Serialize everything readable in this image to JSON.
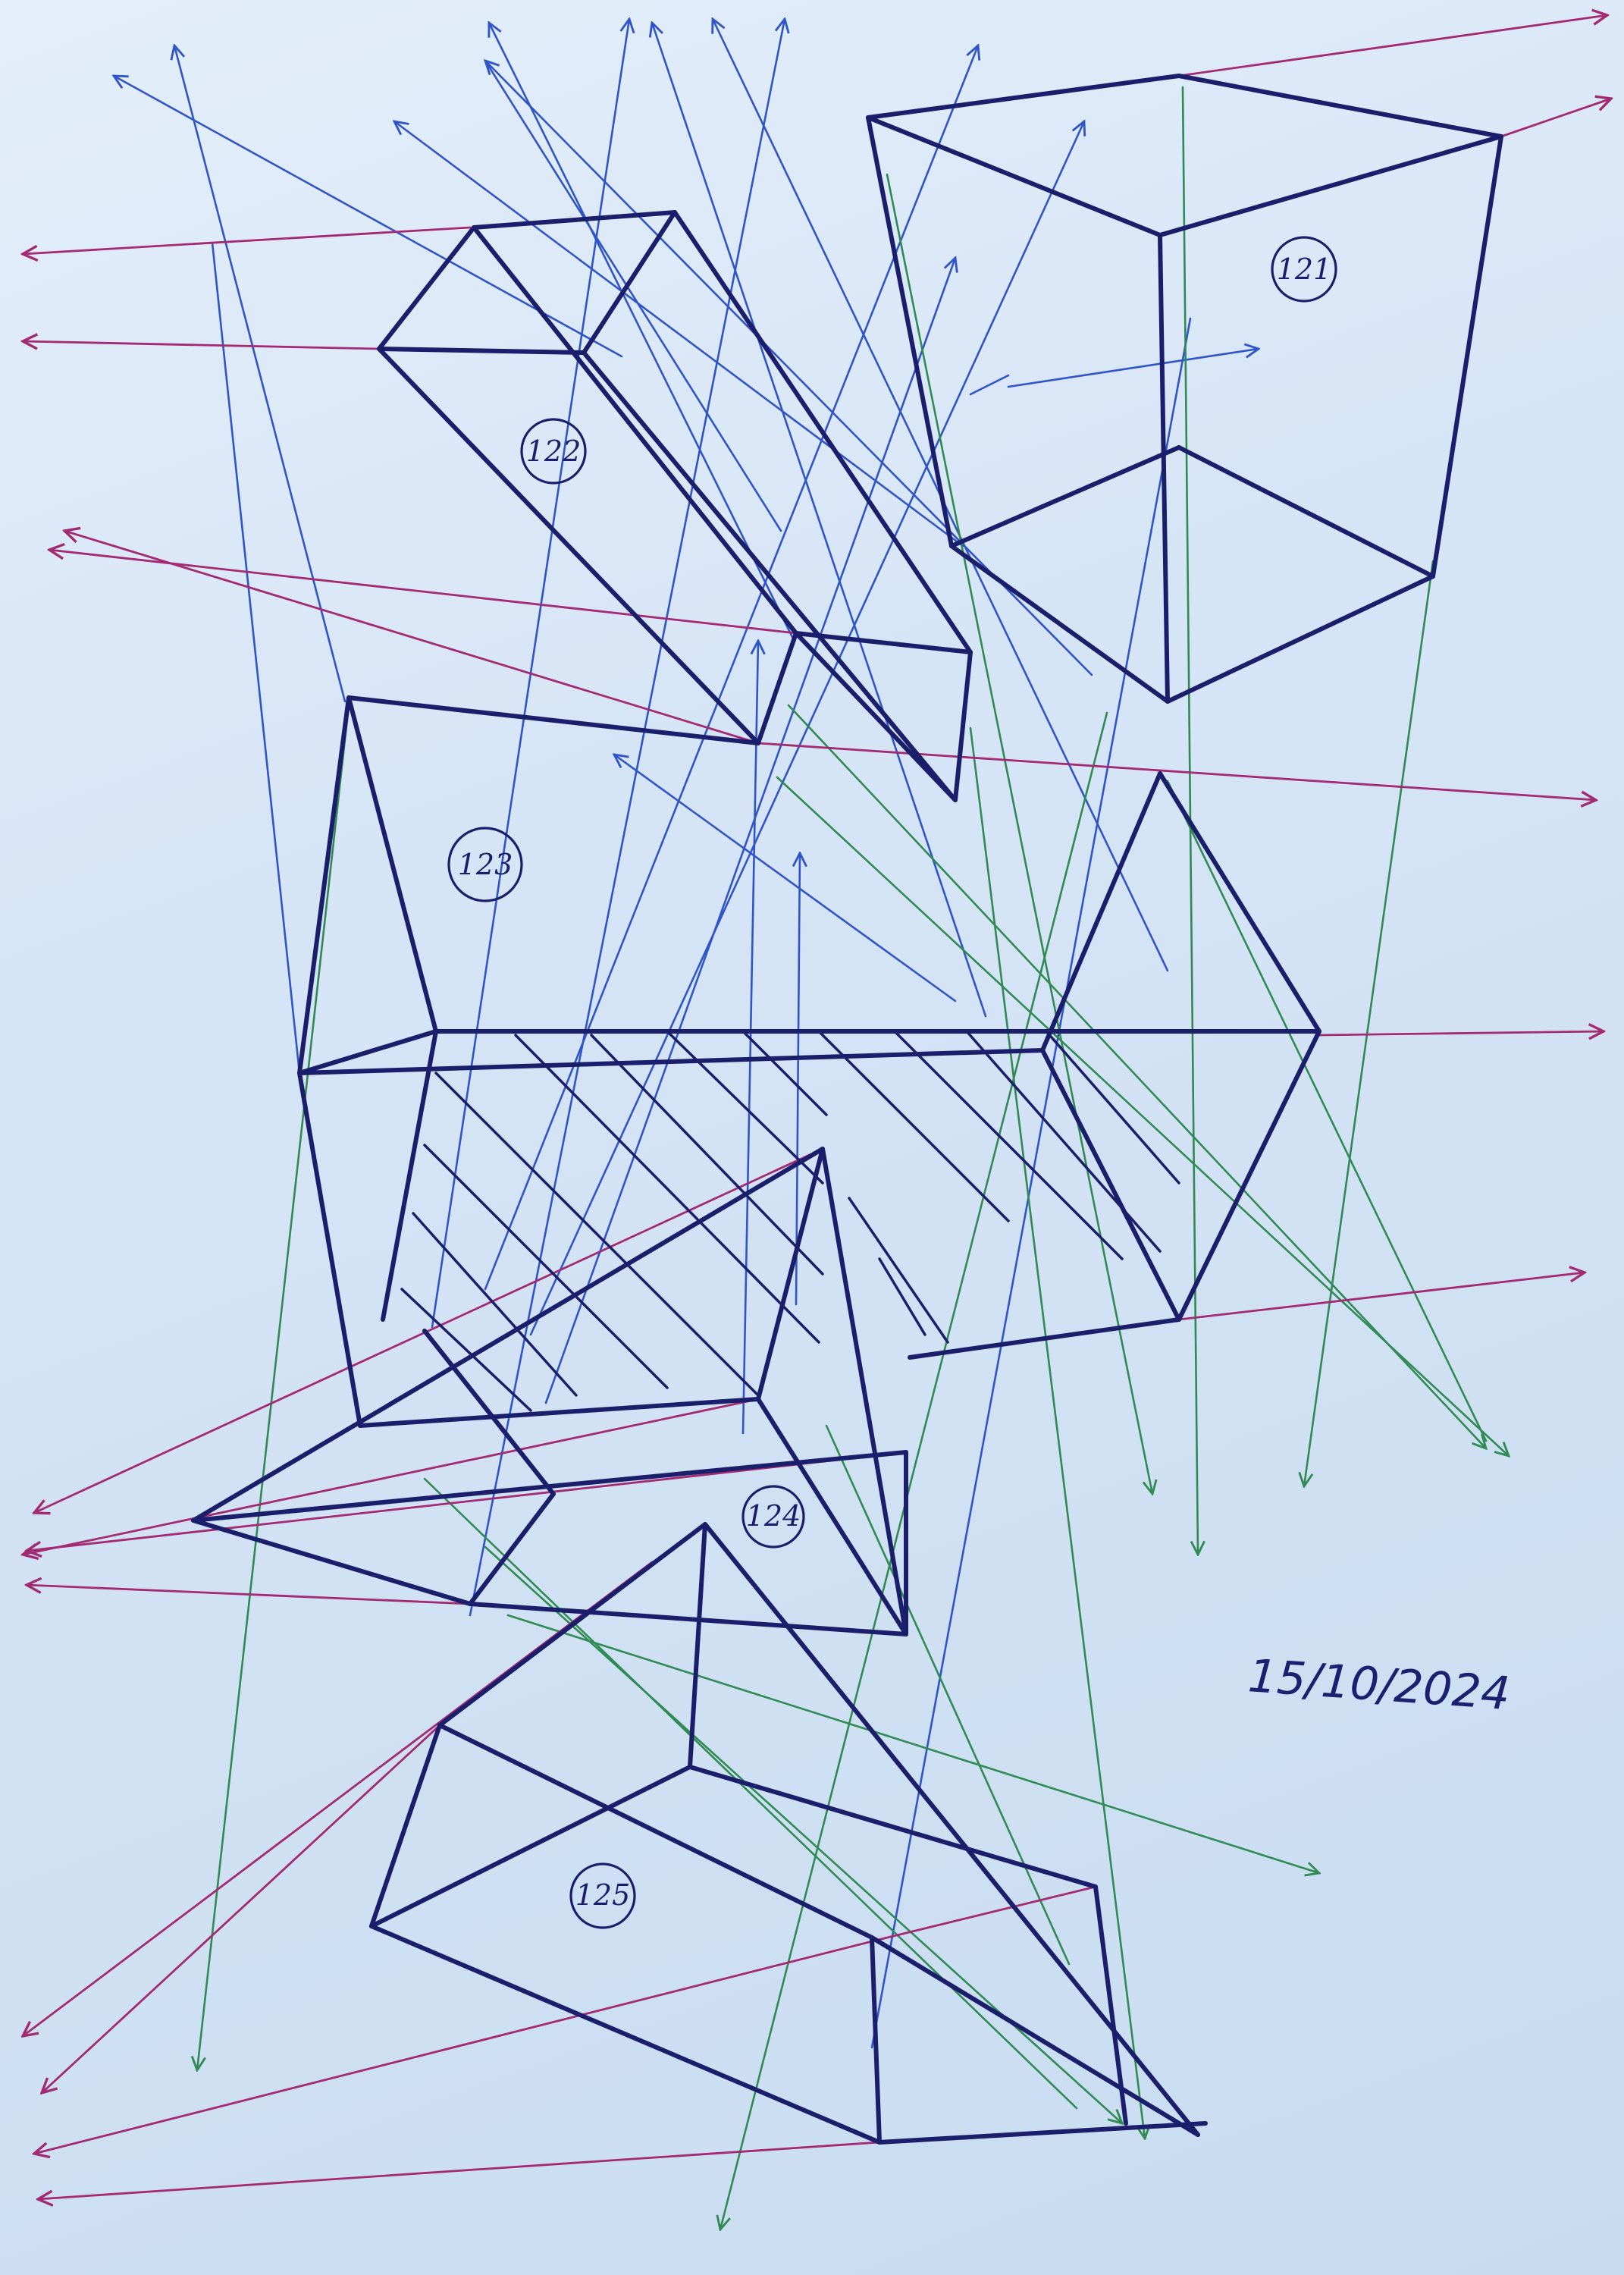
{
  "sheet": {
    "paper_color": "#d6e5f6",
    "ink_colors": {
      "objects": "#1b1f6b",
      "blue_projection": "#2f55c8",
      "green_projection": "#2f8a53",
      "magenta_projection": "#a22a72"
    }
  },
  "labels": [
    {
      "id": "121",
      "text": "121"
    },
    {
      "id": "122",
      "text": "122"
    },
    {
      "id": "123",
      "text": "123"
    },
    {
      "id": "124",
      "text": "124"
    },
    {
      "id": "125",
      "text": "125"
    }
  ],
  "date": "15/10/2024"
}
